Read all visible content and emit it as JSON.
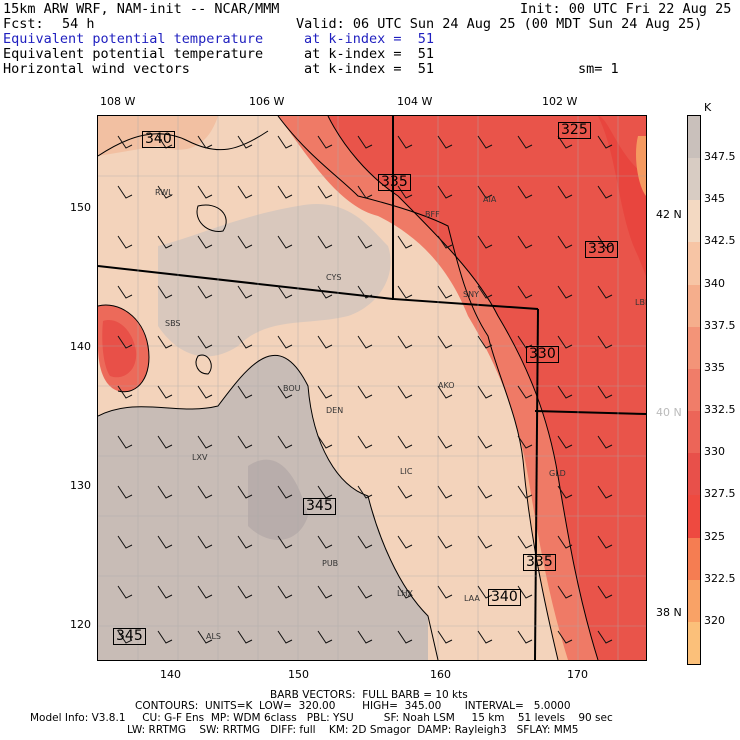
{
  "header": {
    "model": "15km ARW WRF, NAM-init -- NCAR/MMM",
    "init": "Init: 00 UTC Fri 22 Aug 25",
    "fcst_label": "Fcst:",
    "fcst_value": "54 h",
    "valid": "Valid: 06 UTC Sun 24 Aug 25 (00 MDT Sun 24 Aug 25)",
    "field1": "Equivalent potential temperature",
    "field1_level": "at k-index =  51",
    "field2": "Equivalent potential temperature",
    "field2_level": "at k-index =  51",
    "field3": "Horizontal wind vectors",
    "field3_level": "at k-index =  51",
    "smooth": "sm= 1"
  },
  "axes": {
    "top_ticks": [
      "108 W",
      "106 W",
      "104 W",
      "102 W"
    ],
    "left_ticks": [
      "150",
      "140",
      "130",
      "120"
    ],
    "bottom_ticks": [
      "140",
      "150",
      "160",
      "170"
    ],
    "right_ticks": [
      "42 N",
      "40 N",
      "38 N"
    ]
  },
  "contour_labels": [
    "340",
    "325",
    "335",
    "330",
    "330",
    "345",
    "335",
    "340",
    "345"
  ],
  "cities": [
    "RWL",
    "BFF",
    "AIA",
    "CYS",
    "SNY",
    "LBF",
    "SBS",
    "BOU",
    "AKO",
    "DEN",
    "LXV",
    "LIC",
    "GLD",
    "PUB",
    "LHX",
    "LAA",
    "ALS"
  ],
  "colorbar": {
    "unit": "K",
    "labels": [
      "347.5",
      "345",
      "342.5",
      "340",
      "337.5",
      "335",
      "332.5",
      "330",
      "327.5",
      "325",
      "322.5",
      "320"
    ],
    "colors": [
      "#c9c0bb",
      "#d8ccc3",
      "#f3d9c2",
      "#f7c5a5",
      "#f5ae8c",
      "#f39478",
      "#f07d69",
      "#ec6558",
      "#e8504a",
      "#ee4a40",
      "#f57d52",
      "#f9a266",
      "#fbc07a"
    ]
  },
  "footer": {
    "barb": "BARB VECTORS:  FULL BARB = 10 kts",
    "contours": "CONTOURS:  UNITS=K  LOW=  320.00        HIGH=  345.00       INTERVAL=   5.0000",
    "model_info": "Model Info: V3.8.1     CU: G-F Ens  MP: WDM 6class   PBL: YSU         SF: Noah LSM     15 km    51 levels    90 sec",
    "model_info2": "LW: RRTMG    SW: RRTMG   DIFF: full    KM: 2D Smagor  DAMP: Rayleigh3   SFLAY: MM5"
  }
}
